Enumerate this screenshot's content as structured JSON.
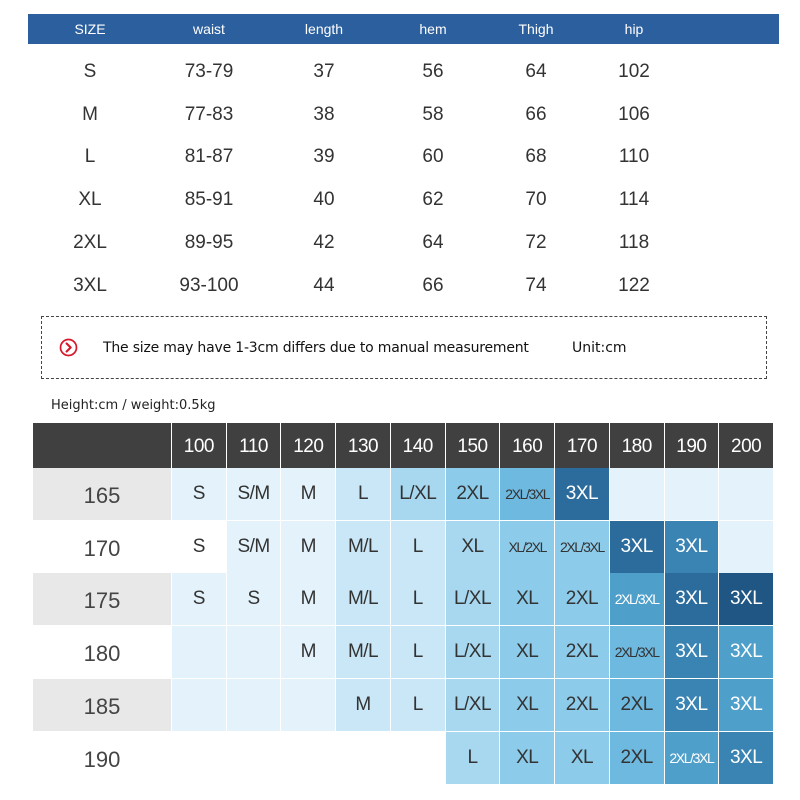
{
  "size_table": {
    "header": [
      "SIZE",
      "waist",
      "length",
      "hem",
      "Thigh",
      "hip"
    ],
    "rows": [
      [
        "S",
        "73-79",
        "37",
        "56",
        "64",
        "102"
      ],
      [
        "M",
        "77-83",
        "38",
        "58",
        "66",
        "106"
      ],
      [
        "L",
        "81-87",
        "39",
        "60",
        "68",
        "110"
      ],
      [
        "XL",
        "85-91",
        "40",
        "62",
        "70",
        "114"
      ],
      [
        "2XL",
        "89-95",
        "42",
        "64",
        "72",
        "118"
      ],
      [
        "3XL",
        "93-100",
        "44",
        "66",
        "74",
        "122"
      ]
    ]
  },
  "note": {
    "icon": "chevron-right-circle-icon",
    "text": "The size may have 1-3cm differs due to manual measurement",
    "unit": "Unit:cm"
  },
  "hw_chart": {
    "caption": "Height:cm / weight:0.5kg",
    "weights": [
      "100",
      "110",
      "120",
      "130",
      "140",
      "150",
      "160",
      "170",
      "180",
      "190",
      "200"
    ],
    "rows": [
      {
        "height": "165",
        "cells": [
          "S",
          "S/M",
          "M",
          "L",
          "L/XL",
          "2XL",
          "2XL/3XL",
          "3XL",
          "",
          "",
          ""
        ]
      },
      {
        "height": "170",
        "cells": [
          "S",
          "S/M",
          "M",
          "M/L",
          "L",
          "XL",
          "XL/2XL",
          "2XL/3XL",
          "3XL",
          "3XL",
          ""
        ]
      },
      {
        "height": "175",
        "cells": [
          "S",
          "S",
          "M",
          "M/L",
          "L",
          "L/XL",
          "XL",
          "2XL",
          "2XL/3XL",
          "3XL",
          "3XL"
        ]
      },
      {
        "height": "180",
        "cells": [
          "",
          "",
          "M",
          "M/L",
          "L",
          "L/XL",
          "XL",
          "2XL",
          "2XL/3XL",
          "3XL",
          "3XL"
        ]
      },
      {
        "height": "185",
        "cells": [
          "",
          "",
          "",
          "M",
          "L",
          "L/XL",
          "XL",
          "2XL",
          "2XL",
          "3XL",
          "3XL"
        ]
      },
      {
        "height": "190",
        "cells": [
          "",
          "",
          "",
          "",
          "",
          "L",
          "XL",
          "XL",
          "2XL",
          "2XL/3XL",
          "3XL"
        ]
      }
    ],
    "colors": {
      "header_bg": "#404040",
      "label_bg_alt": "#e8e8e8",
      "palette": [
        "#ffffff",
        "#e4f3fb",
        "#c9e7f6",
        "#a8d8f0",
        "#8ccbea",
        "#6eb9e0",
        "#4f9fcb",
        "#3a84b4",
        "#2c6c9c",
        "#1f5683"
      ],
      "cell_color_levels": [
        [
          1,
          1,
          1,
          2,
          3,
          4,
          5,
          8,
          1,
          1,
          1
        ],
        [
          0,
          1,
          1,
          2,
          2,
          3,
          4,
          4,
          8,
          7,
          1
        ],
        [
          1,
          1,
          1,
          2,
          2,
          3,
          4,
          4,
          6,
          8,
          9
        ],
        [
          1,
          1,
          1,
          2,
          2,
          3,
          4,
          4,
          5,
          7,
          6
        ],
        [
          1,
          1,
          1,
          2,
          2,
          3,
          4,
          4,
          5,
          7,
          6
        ],
        [
          0,
          0,
          0,
          0,
          0,
          3,
          4,
          4,
          5,
          6,
          7
        ]
      ]
    }
  }
}
